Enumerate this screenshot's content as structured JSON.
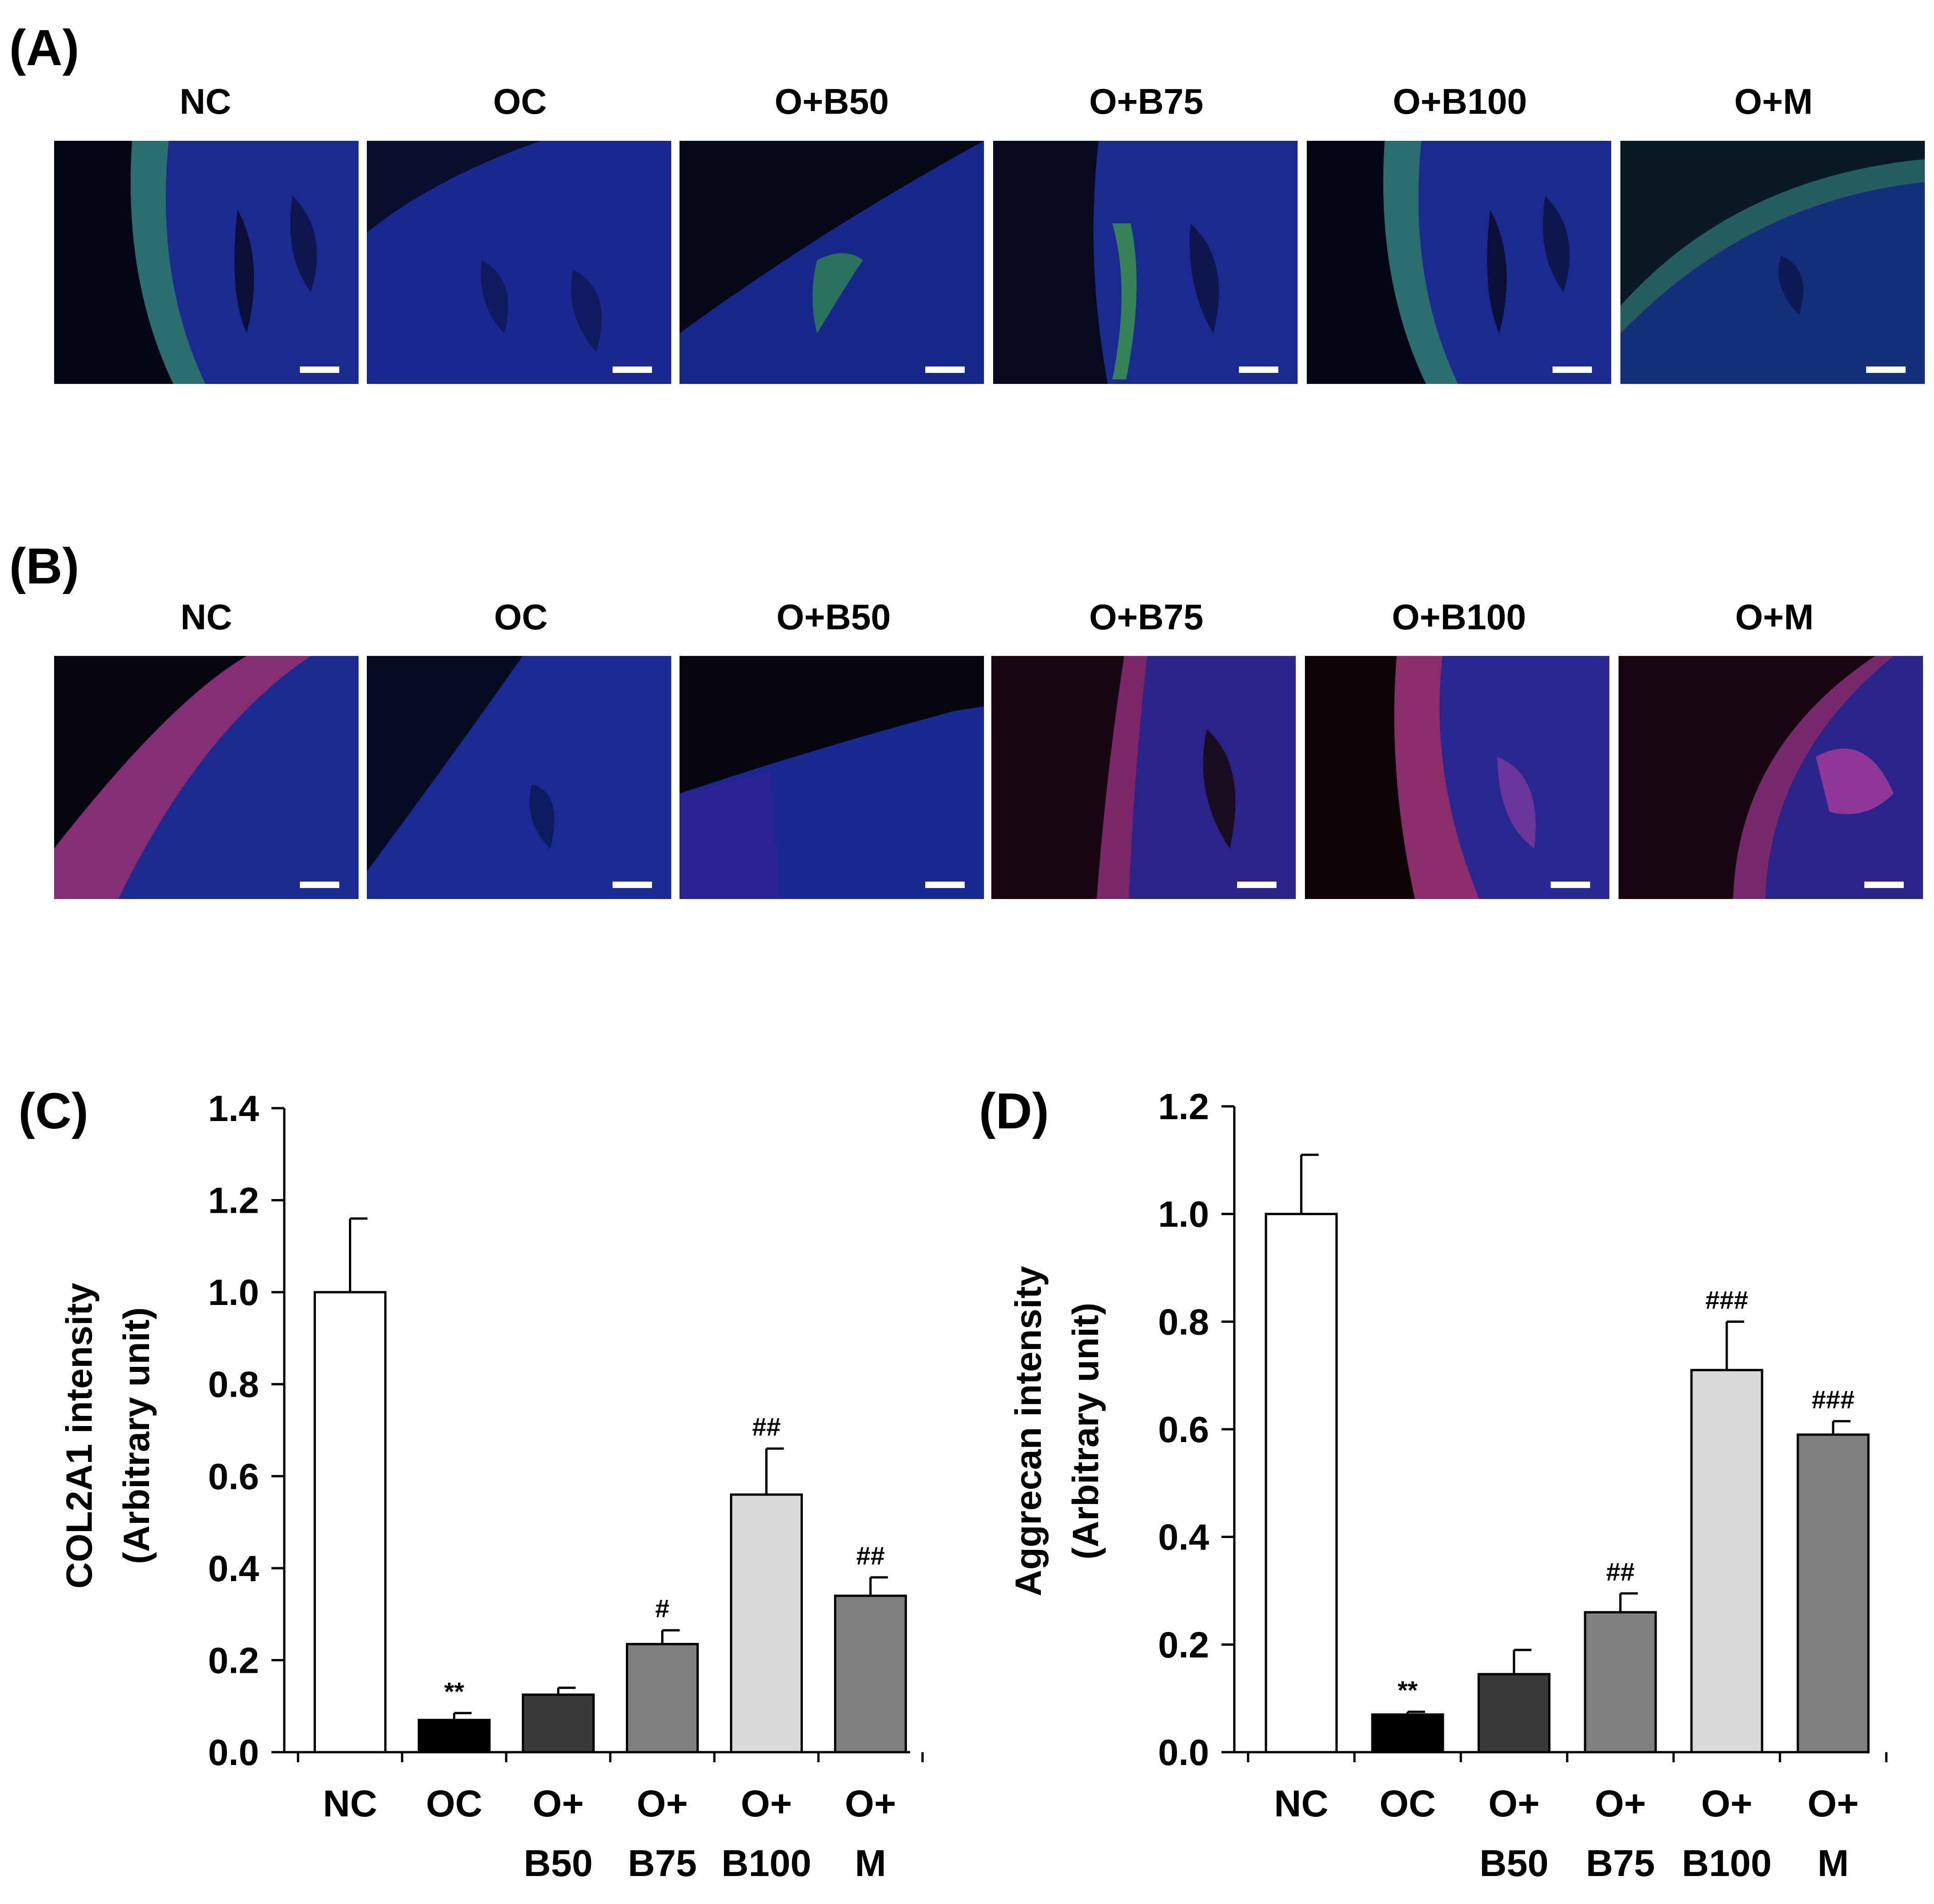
{
  "panels": {
    "A": {
      "letter": "(A)",
      "groups": [
        "NC",
        "OC",
        "O+B50",
        "O+B75",
        "O+B100",
        "O+M"
      ],
      "stain": "green-on-blue"
    },
    "B": {
      "letter": "(B)",
      "groups": [
        "NC",
        "OC",
        "O+B50",
        "O+B75",
        "O+B100",
        "O+M"
      ],
      "stain": "red-on-blue"
    }
  },
  "colors": {
    "nc": "#ffffff",
    "oc": "#000000",
    "b50": "#3a3a3a",
    "b75": "#7f7f7f",
    "b100": "#d9d9d9",
    "m": "#7f7f7f",
    "dapi_blue": "#1a2a9a",
    "green_stain": "#3ea84a",
    "red_stain": "#c0305a",
    "scalebar": "#ffffff"
  },
  "chart_data": [
    {
      "letter": "(C)",
      "type": "bar",
      "categories": [
        [
          "NC"
        ],
        [
          "OC"
        ],
        [
          "O+",
          "B50"
        ],
        [
          "O+",
          "B75"
        ],
        [
          "O+",
          "B100"
        ],
        [
          "O+",
          "M"
        ]
      ],
      "values": [
        1.0,
        0.07,
        0.125,
        0.235,
        0.56,
        0.34
      ],
      "errors": [
        0.16,
        0.015,
        0.015,
        0.03,
        0.1,
        0.04
      ],
      "annotations": [
        "",
        "**",
        "",
        "#",
        "##",
        "##"
      ],
      "ylabel": [
        "COL2A1  intensity",
        "(Arbitrary  unit)"
      ],
      "ylim": [
        0.0,
        1.4
      ],
      "yticks": [
        "0.0",
        "0.2",
        "0.4",
        "0.6",
        "0.8",
        "1.0",
        "1.2",
        "1.4"
      ],
      "bar_colors": [
        "#ffffff",
        "#000000",
        "#3a3a3a",
        "#7f7f7f",
        "#d9d9d9",
        "#7f7f7f"
      ]
    },
    {
      "letter": "(D)",
      "type": "bar",
      "categories": [
        [
          "NC"
        ],
        [
          "OC"
        ],
        [
          "O+",
          "B50"
        ],
        [
          "O+",
          "B75"
        ],
        [
          "O+",
          "B100"
        ],
        [
          "O+",
          "M"
        ]
      ],
      "values": [
        1.0,
        0.07,
        0.145,
        0.26,
        0.71,
        0.59
      ],
      "errors": [
        0.11,
        0.005,
        0.045,
        0.035,
        0.09,
        0.025
      ],
      "annotations": [
        "",
        "**",
        "",
        "##",
        "###",
        "###"
      ],
      "ylabel": [
        "Aggrecan  intensity",
        "(Arbitrary  unit)"
      ],
      "ylim": [
        0.0,
        1.2
      ],
      "yticks": [
        "0.0",
        "0.2",
        "0.4",
        "0.6",
        "0.8",
        "1.0",
        "1.2"
      ],
      "bar_colors": [
        "#ffffff",
        "#000000",
        "#3a3a3a",
        "#7f7f7f",
        "#d9d9d9",
        "#7f7f7f"
      ]
    }
  ]
}
